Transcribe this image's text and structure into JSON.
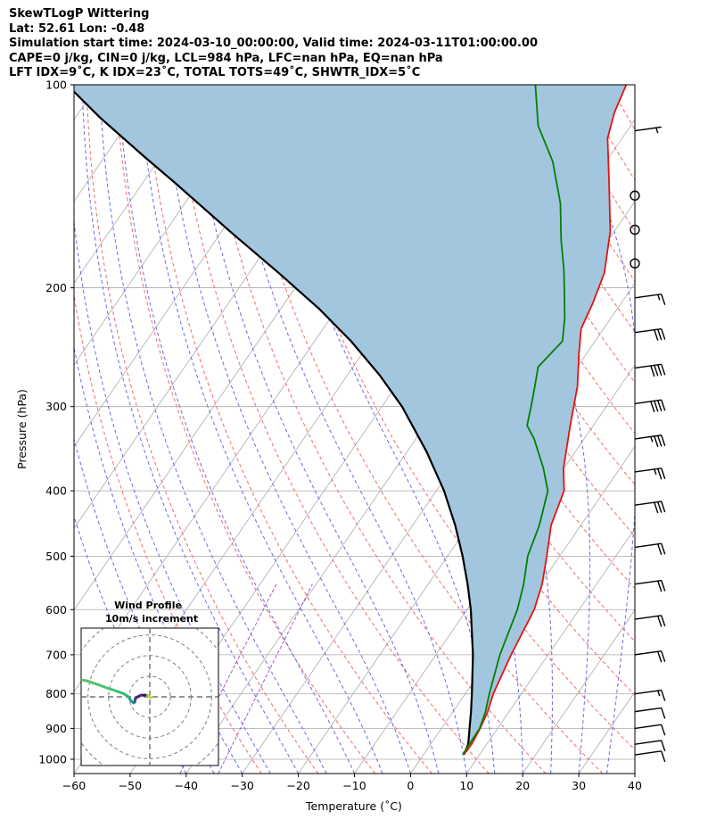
{
  "header": {
    "line1": "SkewTLogP Wittering",
    "line2": "Lat: 52.61   Lon: -0.48",
    "line3": "Simulation start time: 2024-03-10_00:00:00, Valid time: 2024-03-11T01:00:00.00",
    "line4": "CAPE=0 j/kg, CIN=0 j/kg, LCL=984 hPa, LFC=nan hPa, EQ=nan hPa",
    "line5": "LFT IDX=9˚C, K IDX=23˚C, TOTAL TOTS=49˚C, SHWTR_IDX=5˚C"
  },
  "chart_data": {
    "type": "line",
    "subtype": "skew-t log-p",
    "xlabel": "Temperature (˚C)",
    "ylabel": "Pressure (hPa)",
    "xlim": [
      -60,
      40
    ],
    "ylim": [
      1050,
      100
    ],
    "yscale": "log",
    "grid": true,
    "x_ticks": [
      -60,
      -50,
      -40,
      -30,
      -20,
      -10,
      0,
      10,
      20,
      30,
      40
    ],
    "x_tick_labels": [
      "−60",
      "−50",
      "−40",
      "−30",
      "−20",
      "−10",
      "0",
      "10",
      "20",
      "30",
      "40"
    ],
    "y_ticks": [
      1000,
      900,
      800,
      700,
      600,
      500,
      400,
      300,
      200,
      100
    ],
    "y_tick_labels": [
      "1000",
      "900",
      "800",
      "700",
      "600",
      "500",
      "400",
      "300",
      "200",
      "100"
    ],
    "colors": {
      "temperature": "#e8120f",
      "dewpoint": "#008000",
      "parcel": "#000000",
      "fill": "#a3c6df",
      "isotherm": "#aaaaaa",
      "dry_adiabat": "#f26b6b",
      "moist_adiabat": "#6a6ae8",
      "mixing_ratio": "#a75cc8"
    },
    "series": [
      {
        "key": "temperature",
        "points": [
          [
            7.2,
            985
          ],
          [
            7.3,
            950
          ],
          [
            6.9,
            900
          ],
          [
            6.2,
            850
          ],
          [
            5.0,
            800
          ],
          [
            3.4,
            700
          ],
          [
            2.0,
            600
          ],
          [
            0.3,
            550
          ],
          [
            -2.3,
            500
          ],
          [
            -5.3,
            450
          ],
          [
            -7.2,
            400
          ],
          [
            -10.1,
            370
          ],
          [
            -14.1,
            320
          ],
          [
            -17.6,
            280
          ],
          [
            -21.4,
            250
          ],
          [
            -24.0,
            230
          ],
          [
            -25.1,
            210
          ],
          [
            -26.7,
            190
          ],
          [
            -30.7,
            165
          ],
          [
            -36.8,
            140
          ],
          [
            -42.6,
            120
          ],
          [
            -44.5,
            110
          ],
          [
            -45.8,
            100
          ]
        ]
      },
      {
        "key": "dewpoint",
        "points": [
          [
            7.0,
            985
          ],
          [
            6.9,
            950
          ],
          [
            6.8,
            900
          ],
          [
            5.8,
            850
          ],
          [
            4.3,
            800
          ],
          [
            1.4,
            700
          ],
          [
            -1.0,
            600
          ],
          [
            -3.0,
            550
          ],
          [
            -5.7,
            500
          ],
          [
            -7.4,
            450
          ],
          [
            -10.1,
            400
          ],
          [
            -13.7,
            370
          ],
          [
            -18.9,
            335
          ],
          [
            -21.8,
            320
          ],
          [
            -23.4,
            300
          ],
          [
            -25.2,
            280
          ],
          [
            -27.0,
            262
          ],
          [
            -25.8,
            240
          ],
          [
            -28.2,
            222
          ],
          [
            -31.1,
            205
          ],
          [
            -34.3,
            188
          ],
          [
            -38.4,
            170
          ],
          [
            -43.0,
            150
          ],
          [
            -49.5,
            130
          ],
          [
            -56.5,
            115
          ],
          [
            -62.0,
            100
          ]
        ]
      },
      {
        "key": "parcel",
        "points": [
          [
            7.2,
            985
          ],
          [
            6.7,
            950
          ],
          [
            5.0,
            900
          ],
          [
            3.2,
            850
          ],
          [
            1.2,
            800
          ],
          [
            -3.4,
            700
          ],
          [
            -9.3,
            600
          ],
          [
            -13.0,
            550
          ],
          [
            -17.3,
            500
          ],
          [
            -22.4,
            450
          ],
          [
            -28.6,
            400
          ],
          [
            -36.5,
            350
          ],
          [
            -46.4,
            300
          ],
          [
            -54.1,
            270
          ],
          [
            -63.5,
            240
          ],
          [
            -73.1,
            215
          ],
          [
            -84.8,
            190
          ],
          [
            -98.5,
            165
          ],
          [
            -114.1,
            140
          ],
          [
            -122.8,
            128
          ],
          [
            -135.5,
            112
          ],
          [
            -145.5,
            100
          ]
        ]
      }
    ],
    "wind_barbs": [
      {
        "pressure": 985,
        "speed_kt": 10
      },
      {
        "pressure": 950,
        "speed_kt": 10
      },
      {
        "pressure": 900,
        "speed_kt": 10
      },
      {
        "pressure": 850,
        "speed_kt": 10
      },
      {
        "pressure": 800,
        "speed_kt": 15
      },
      {
        "pressure": 700,
        "speed_kt": 20
      },
      {
        "pressure": 620,
        "speed_kt": 20
      },
      {
        "pressure": 550,
        "speed_kt": 20
      },
      {
        "pressure": 485,
        "speed_kt": 20
      },
      {
        "pressure": 420,
        "speed_kt": 30
      },
      {
        "pressure": 375,
        "speed_kt": 25
      },
      {
        "pressure": 335,
        "speed_kt": 35
      },
      {
        "pressure": 297,
        "speed_kt": 40
      },
      {
        "pressure": 263,
        "speed_kt": 40
      },
      {
        "pressure": 233,
        "speed_kt": 30
      },
      {
        "pressure": 207,
        "speed_kt": 15
      },
      {
        "pressure": 184,
        "speed_kt": 0
      },
      {
        "pressure": 164,
        "speed_kt": 0
      },
      {
        "pressure": 146,
        "speed_kt": 0
      },
      {
        "pressure": 117,
        "speed_kt": 5
      }
    ],
    "hodograph": {
      "title": "Wind Profile",
      "subtitle": "10m/s increment",
      "points": [
        [
          0.5,
          -0.3
        ],
        [
          -0.5,
          0.4
        ],
        [
          -1.5,
          0.6
        ],
        [
          -3.0,
          0.5
        ],
        [
          -4.0,
          0.0
        ],
        [
          -4.8,
          -0.6
        ],
        [
          -4.9,
          -1.6
        ],
        [
          -5.3,
          -2.0
        ],
        [
          -6.1,
          -1.4
        ],
        [
          -7.1,
          0.0
        ],
        [
          -8.5,
          1.0
        ],
        [
          -11.0,
          1.9
        ],
        [
          -13.8,
          2.8
        ],
        [
          -17.0,
          4.0
        ],
        [
          -20.5,
          5.2
        ],
        [
          -24.0,
          5.9
        ]
      ]
    }
  }
}
